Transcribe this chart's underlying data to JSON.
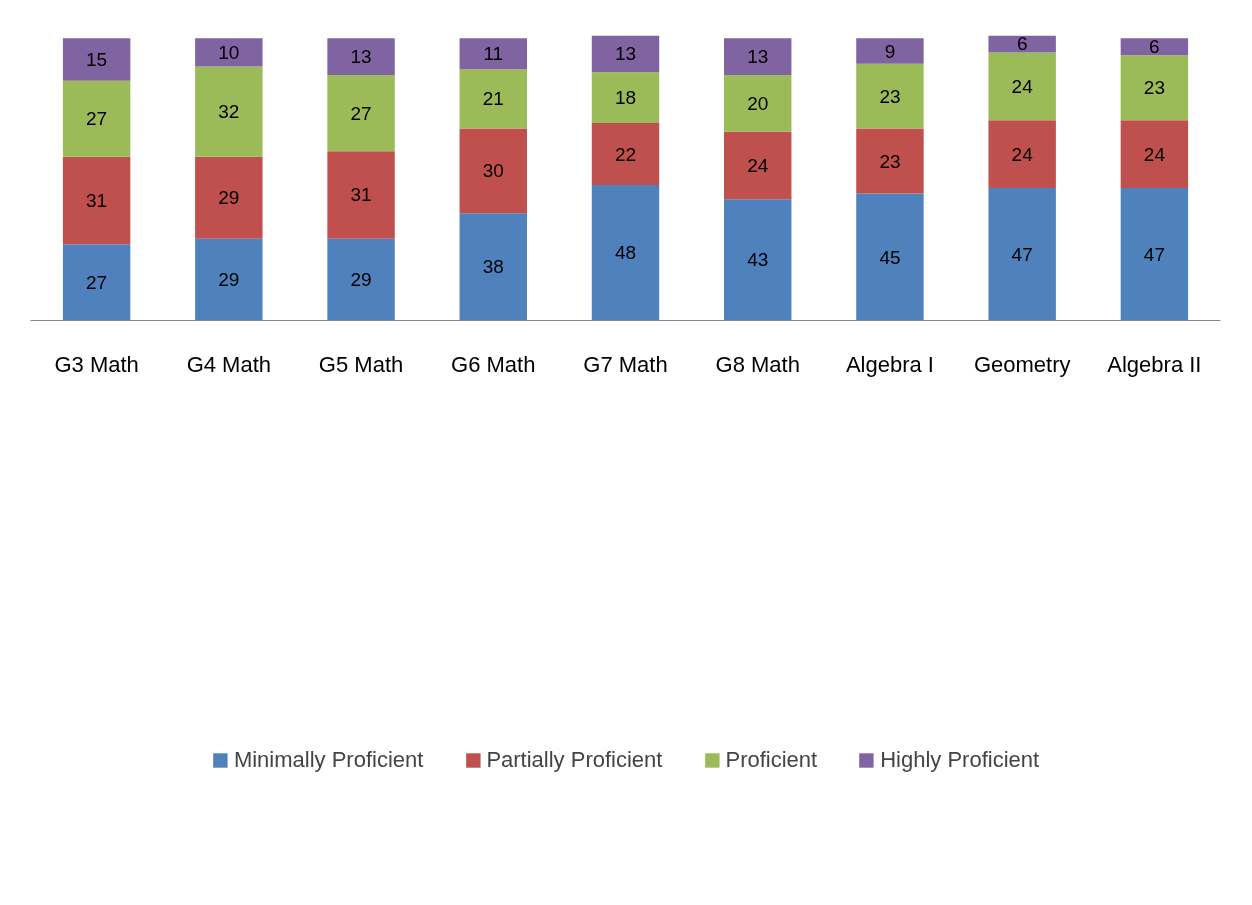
{
  "chart_data": {
    "type": "bar",
    "stacked": true,
    "data_labels": true,
    "legend": "bottom",
    "grid": false,
    "tick_labels": "x",
    "categories": [
      "G3 Math",
      "G4 Math",
      "G5 Math",
      "G6 Math",
      "G7 Math",
      "G8 Math",
      "Algebra I",
      "Geometry",
      "Algebra II"
    ],
    "series": [
      {
        "name": "Minimally Proficient",
        "color": "#4f81bd",
        "values": [
          27,
          29,
          29,
          38,
          48,
          43,
          45,
          47,
          47
        ]
      },
      {
        "name": "Partially Proficient",
        "color": "#c0504d",
        "values": [
          31,
          29,
          31,
          30,
          22,
          24,
          23,
          24,
          24
        ]
      },
      {
        "name": "Proficient",
        "color": "#9bbb59",
        "values": [
          27,
          32,
          27,
          21,
          18,
          20,
          23,
          24,
          23
        ]
      },
      {
        "name": "Highly Proficient",
        "color": "#8064a2",
        "values": [
          15,
          10,
          13,
          11,
          13,
          13,
          9,
          6,
          6
        ]
      }
    ]
  }
}
